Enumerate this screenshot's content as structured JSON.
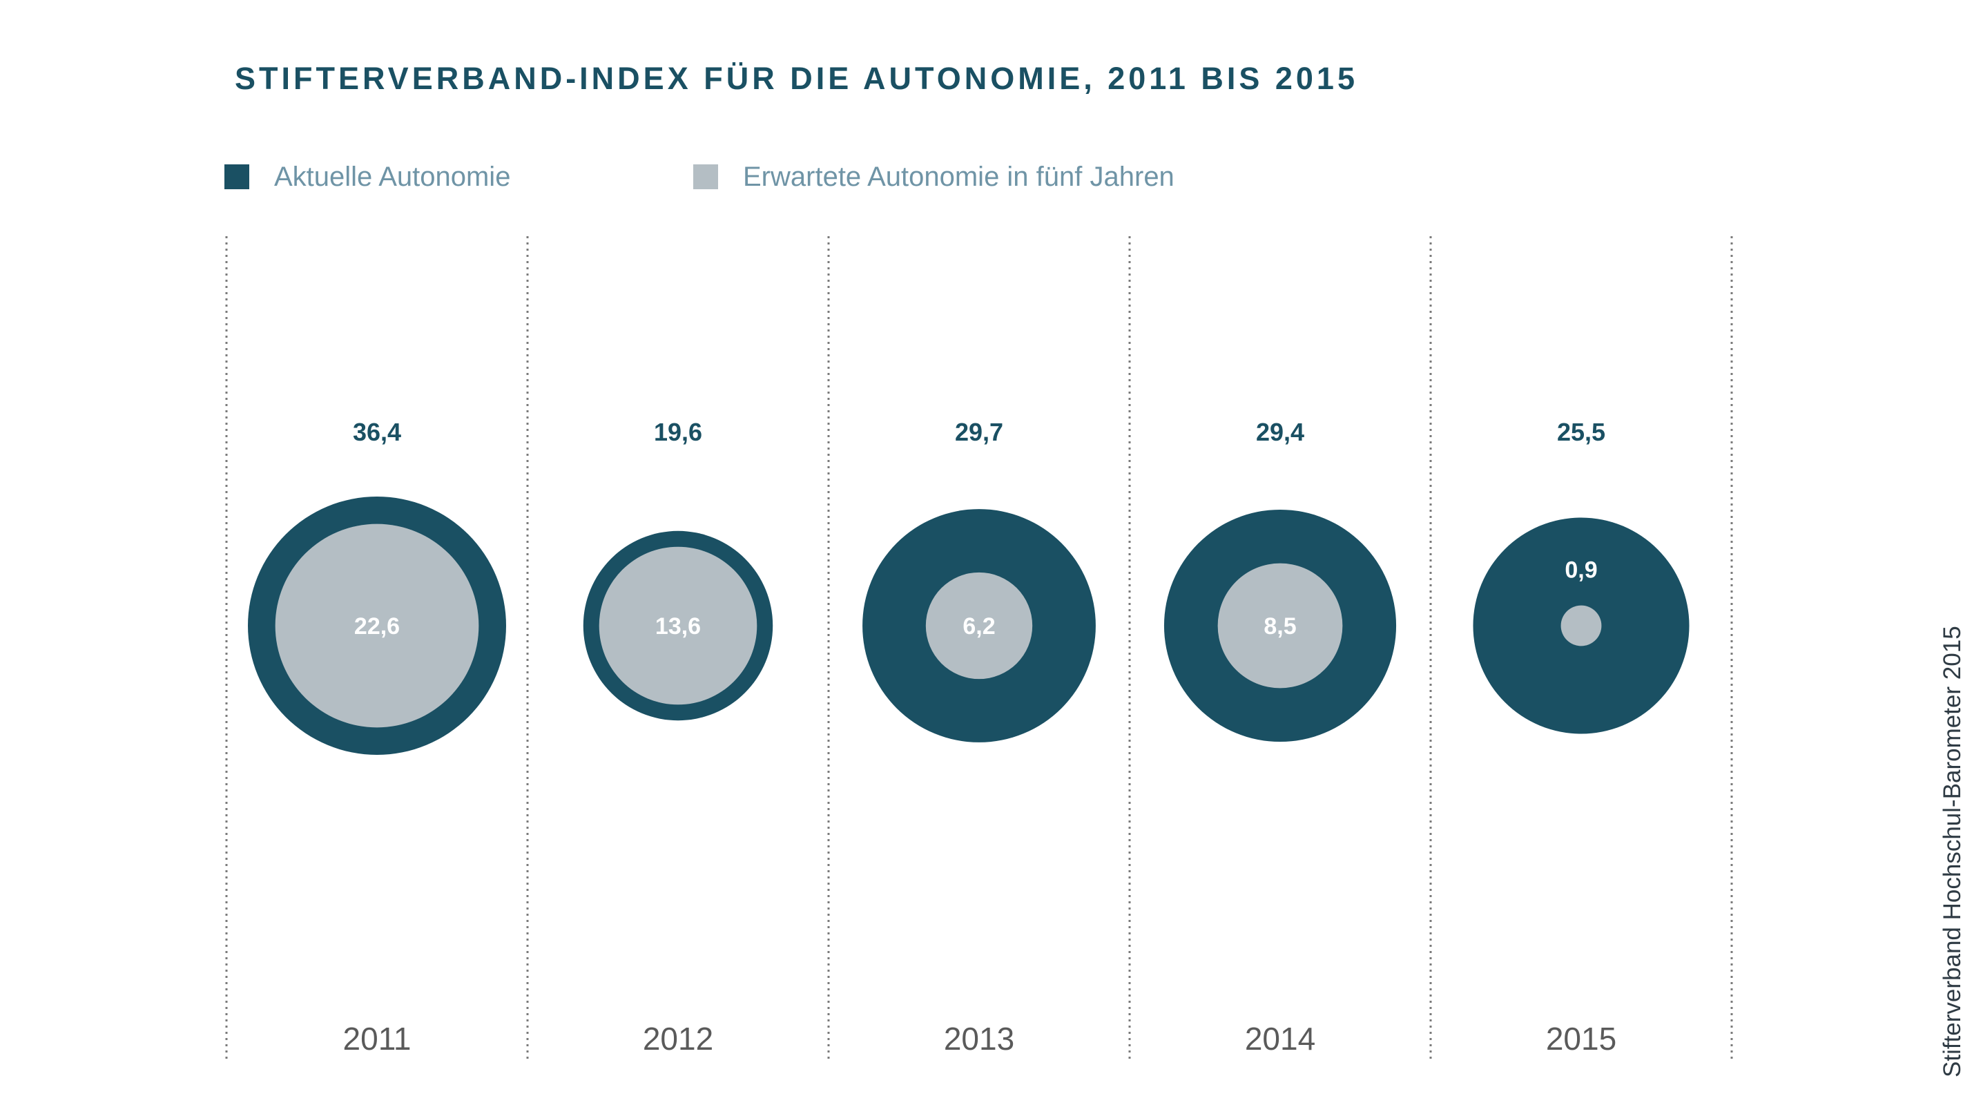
{
  "chart_data": {
    "type": "bubble",
    "title": "STIFTERVERBAND-INDEX FÜR DIE AUTONOMIE, 2011 BIS 2015",
    "categories": [
      "2011",
      "2012",
      "2013",
      "2014",
      "2015"
    ],
    "series": [
      {
        "name": "Aktuelle Autonomie",
        "values": [
          36.4,
          19.6,
          29.7,
          29.4,
          25.5
        ],
        "labels": [
          "36,4",
          "19,6",
          "29,7",
          "29,4",
          "25,5"
        ],
        "color": "#1a5063"
      },
      {
        "name": "Erwartete Autonomie in fünf Jahren",
        "values": [
          22.6,
          13.6,
          6.2,
          8.5,
          0.9
        ],
        "labels": [
          "22,6",
          "13,6",
          "6,2",
          "8,5",
          "0,9"
        ],
        "color": "#b4bec4"
      }
    ],
    "legend": "top-left",
    "grid": "vertical dotted separators between years"
  },
  "source": "Stifterverband Hochschul-Barometer 2015",
  "colors": {
    "title": "#1a5063",
    "legend_text": "#6f94a6",
    "axis_text": "#5a5a5a",
    "separator": "#7a7a7a"
  }
}
